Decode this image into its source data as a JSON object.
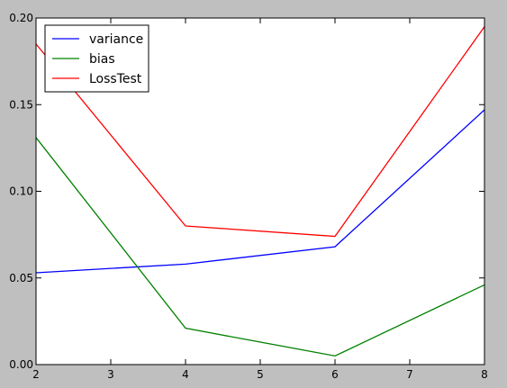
{
  "chart_data": {
    "type": "line",
    "title": "",
    "xlabel": "",
    "ylabel": "",
    "x": [
      2,
      4,
      6,
      8
    ],
    "xlim": [
      2,
      8
    ],
    "ylim": [
      0.0,
      0.2
    ],
    "xticks": [
      "2",
      "3",
      "4",
      "5",
      "6",
      "7",
      "8"
    ],
    "yticks": [
      "0.00",
      "0.05",
      "0.10",
      "0.15",
      "0.20"
    ],
    "grid": false,
    "legend_position": "top-left",
    "series": [
      {
        "name": "variance",
        "color": "#0000ff",
        "values": [
          0.053,
          0.058,
          0.068,
          0.147
        ]
      },
      {
        "name": "bias",
        "color": "#008000",
        "values": [
          0.131,
          0.021,
          0.005,
          0.046
        ]
      },
      {
        "name": "LossTest",
        "color": "#ff0000",
        "values": [
          0.185,
          0.08,
          0.074,
          0.195
        ]
      }
    ]
  }
}
